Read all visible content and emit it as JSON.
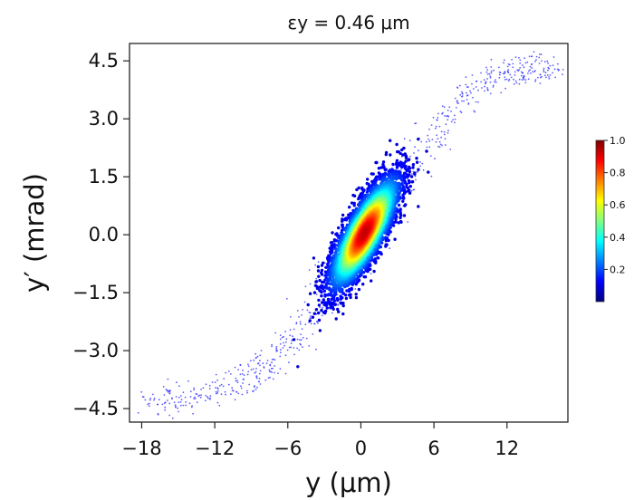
{
  "chart_data": {
    "type": "scatter",
    "title": "εy = 0.46 μm",
    "xlabel": "y (μm)",
    "ylabel": "y′ (mrad)",
    "xlim": [
      -19,
      17
    ],
    "ylim": [
      -4.85,
      4.95
    ],
    "xticks": [
      "−18",
      "−12",
      "−6",
      "0",
      "6",
      "12"
    ],
    "xtick_values": [
      -18,
      -12,
      -6,
      0,
      6,
      12
    ],
    "yticks": [
      "4.5",
      "3.0",
      "1.5",
      "0.0",
      "−1.5",
      "−3.0",
      "−4.5"
    ],
    "ytick_values": [
      4.5,
      3.0,
      1.5,
      0.0,
      -1.5,
      -3.0,
      -4.5
    ],
    "density_colormap": "jet",
    "colorbar": {
      "ticks": [
        "1.0",
        "0.8",
        "0.6",
        "0.4",
        "0.2"
      ],
      "tick_values": [
        1.0,
        0.8,
        0.6,
        0.4,
        0.2
      ],
      "range": [
        0,
        1
      ]
    },
    "core": {
      "center": [
        0.3,
        0.05
      ],
      "sigma_y_um": 1.4,
      "sigma_yp_mrad": 0.72,
      "correlation": 0.8
    },
    "tail": {
      "points": [
        [
          -17.3,
          -4.3
        ],
        [
          -14,
          -4.2
        ],
        [
          -10,
          -3.85
        ],
        [
          -7,
          -3.2
        ],
        [
          -4.2,
          -2.2
        ],
        [
          -1.5,
          -0.8
        ],
        [
          0.3,
          0.05
        ],
        [
          2.5,
          1.0
        ],
        [
          5.2,
          2.2
        ],
        [
          8,
          3.4
        ],
        [
          10.8,
          4.1
        ],
        [
          13.5,
          4.25
        ],
        [
          15.5,
          4.3
        ]
      ]
    }
  }
}
